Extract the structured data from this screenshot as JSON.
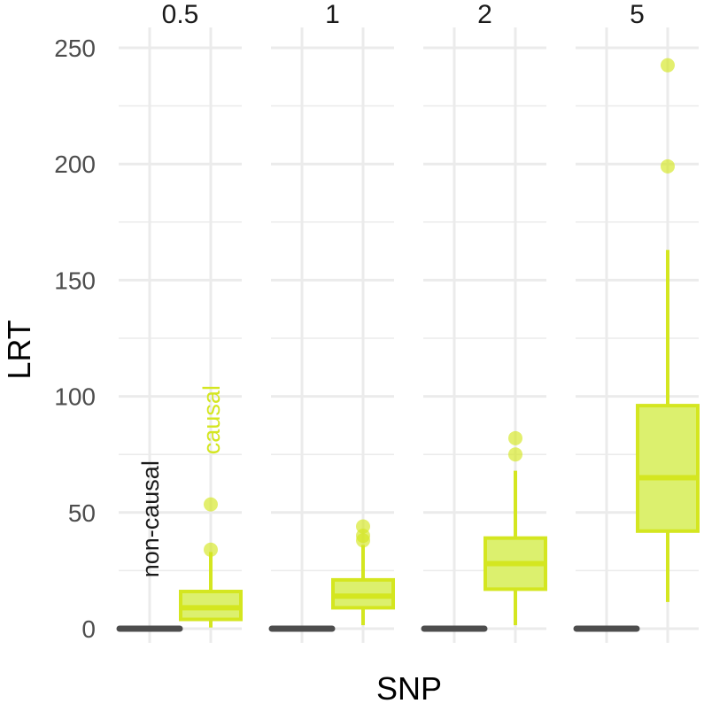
{
  "chart_data": {
    "type": "boxplot",
    "xlabel": "SNP",
    "ylabel": "LRT",
    "ylim": [
      0,
      250
    ],
    "yticks": [
      0,
      50,
      100,
      150,
      200,
      250
    ],
    "grid": true,
    "legend": "none",
    "colors": {
      "causal_fill": "#dcf06e",
      "causal_stroke": "#d4e620",
      "noncausal": "#4d4d4d",
      "grid": "#ebebeb",
      "point": "#d4e620"
    },
    "categories": [
      "non-causal",
      "causal"
    ],
    "facets": [
      {
        "label": "0.5",
        "boxes": [
          {
            "group": "non-causal",
            "min": 0,
            "q1": 0,
            "median": 0,
            "q3": 0,
            "max": 0,
            "outliers": []
          },
          {
            "group": "causal",
            "min": 0.5,
            "q1": 4,
            "median": 9,
            "q3": 16,
            "max": 33,
            "outliers": [
              34,
              53.5
            ]
          }
        ]
      },
      {
        "label": "1",
        "boxes": [
          {
            "group": "non-causal",
            "min": 0,
            "q1": 0,
            "median": 0,
            "q3": 0,
            "max": 0,
            "outliers": []
          },
          {
            "group": "causal",
            "min": 1.5,
            "q1": 9,
            "median": 14,
            "q3": 21,
            "max": 36,
            "outliers": [
              38,
              40,
              44
            ]
          }
        ]
      },
      {
        "label": "2",
        "boxes": [
          {
            "group": "non-causal",
            "min": 0,
            "q1": 0,
            "median": 0,
            "q3": 0,
            "max": 0,
            "outliers": []
          },
          {
            "group": "causal",
            "min": 1.5,
            "q1": 17,
            "median": 28,
            "q3": 39,
            "max": 68,
            "outliers": [
              75,
              82
            ]
          }
        ]
      },
      {
        "label": "5",
        "boxes": [
          {
            "group": "non-causal",
            "min": 0,
            "q1": 0,
            "median": 0,
            "q3": 0,
            "max": 0,
            "outliers": []
          },
          {
            "group": "causal",
            "min": 11.5,
            "q1": 42,
            "median": 65,
            "q3": 96,
            "max": 163,
            "outliers": [
              199,
              242.5
            ]
          }
        ]
      }
    ],
    "annotations": [
      {
        "text": "non-causal",
        "facet": 0,
        "group": "non-causal",
        "y": 22
      },
      {
        "text": "causal",
        "facet": 0,
        "group": "causal",
        "y": 75
      }
    ]
  }
}
